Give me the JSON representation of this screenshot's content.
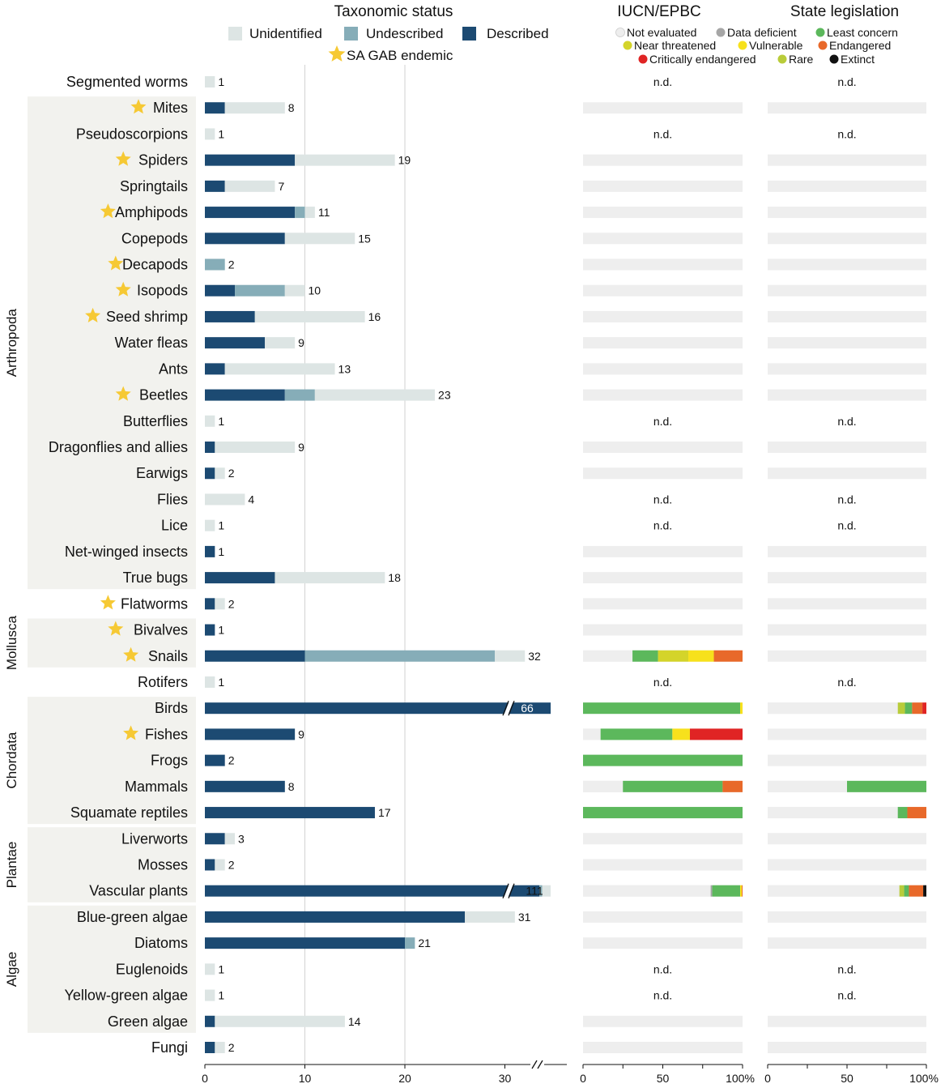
{
  "headers": {
    "taxonomic": "Taxonomic status",
    "iucn": "IUCN/EPBC",
    "state": "State legislation"
  },
  "legend_tax": [
    {
      "label": "Unidentified",
      "color": "#dde5e4"
    },
    {
      "label": "Undescribed",
      "color": "#86adb8"
    },
    {
      "label": "Described",
      "color": "#1c4a72"
    }
  ],
  "endemic_label": "SA GAB endemic",
  "legend_cons": [
    {
      "label": "Not evaluated",
      "color": "#eeeeee"
    },
    {
      "label": "Data deficient",
      "color": "#a6a6a6"
    },
    {
      "label": "Least concern",
      "color": "#5cb85c"
    },
    {
      "label": "Near threatened",
      "color": "#d4d42a"
    },
    {
      "label": "Vulnerable",
      "color": "#f7e11c"
    },
    {
      "label": "Endangered",
      "color": "#e8692a"
    },
    {
      "label": "Critically endangered",
      "color": "#e02424"
    },
    {
      "label": "Rare",
      "color": "#b9cc3a"
    },
    {
      "label": "Extinct",
      "color": "#111111"
    }
  ],
  "nd_label": "n.d.",
  "break_mark": "//",
  "axes": {
    "tax_ticks": [
      "0",
      "10",
      "20",
      "30"
    ],
    "pct_ticks": [
      "0",
      "50",
      "100%"
    ]
  },
  "groups": [
    {
      "label": "Arthropoda",
      "first": 1,
      "last": 19
    },
    {
      "label": "Mollusca",
      "first": 21,
      "last": 22
    },
    {
      "label": "Chordata",
      "first": 24,
      "last": 28
    },
    {
      "label": "Plantae",
      "first": 29,
      "last": 31
    },
    {
      "label": "Algae",
      "first": 32,
      "last": 36
    }
  ],
  "chart_data": {
    "type": "bar",
    "stacking": "stacked horizontal bars",
    "series": [
      "Described",
      "Undescribed",
      "Unidentified"
    ],
    "taxa": [
      {
        "name": "Segmented worms",
        "endemic": false,
        "described": 0,
        "undescribed": 0,
        "unidentified": 1,
        "total": "1",
        "nd": true
      },
      {
        "name": "Mites",
        "endemic": true,
        "described": 2,
        "undescribed": 0,
        "unidentified": 6,
        "total": "8"
      },
      {
        "name": "Pseudoscorpions",
        "endemic": false,
        "described": 0,
        "undescribed": 0,
        "unidentified": 1,
        "total": "1",
        "nd": true
      },
      {
        "name": "Spiders",
        "endemic": true,
        "described": 9,
        "undescribed": 0,
        "unidentified": 10,
        "total": "19"
      },
      {
        "name": "Springtails",
        "endemic": false,
        "described": 2,
        "undescribed": 0,
        "unidentified": 5,
        "total": "7"
      },
      {
        "name": "Amphipods",
        "endemic": true,
        "described": 9,
        "undescribed": 1,
        "unidentified": 1,
        "total": "11"
      },
      {
        "name": "Copepods",
        "endemic": false,
        "described": 8,
        "undescribed": 0,
        "unidentified": 7,
        "total": "15"
      },
      {
        "name": "Decapods",
        "endemic": true,
        "described": 0,
        "undescribed": 2,
        "unidentified": 0,
        "total": "2"
      },
      {
        "name": "Isopods",
        "endemic": true,
        "described": 3,
        "undescribed": 5,
        "unidentified": 2,
        "total": "10"
      },
      {
        "name": "Seed shrimp",
        "endemic": true,
        "described": 5,
        "undescribed": 0,
        "unidentified": 11,
        "total": "16"
      },
      {
        "name": "Water fleas",
        "endemic": false,
        "described": 6,
        "undescribed": 0,
        "unidentified": 3,
        "total": "9"
      },
      {
        "name": "Ants",
        "endemic": false,
        "described": 2,
        "undescribed": 0,
        "unidentified": 11,
        "total": "13"
      },
      {
        "name": "Beetles",
        "endemic": true,
        "described": 8,
        "undescribed": 3,
        "unidentified": 12,
        "total": "23"
      },
      {
        "name": "Butterflies",
        "endemic": false,
        "described": 0,
        "undescribed": 0,
        "unidentified": 1,
        "total": "1",
        "nd": true
      },
      {
        "name": "Dragonflies and allies",
        "endemic": false,
        "described": 1,
        "undescribed": 0,
        "unidentified": 8,
        "total": "9"
      },
      {
        "name": "Earwigs",
        "endemic": false,
        "described": 1,
        "undescribed": 0,
        "unidentified": 1,
        "total": "2"
      },
      {
        "name": "Flies",
        "endemic": false,
        "described": 0,
        "undescribed": 0,
        "unidentified": 4,
        "total": "4",
        "nd": true
      },
      {
        "name": "Lice",
        "endemic": false,
        "described": 0,
        "undescribed": 0,
        "unidentified": 1,
        "total": "1",
        "nd": true
      },
      {
        "name": "Net-winged insects",
        "endemic": false,
        "described": 1,
        "undescribed": 0,
        "unidentified": 0,
        "total": "1"
      },
      {
        "name": "True bugs",
        "endemic": false,
        "described": 7,
        "undescribed": 0,
        "unidentified": 11,
        "total": "18"
      },
      {
        "name": "Flatworms",
        "endemic": true,
        "described": 1,
        "undescribed": 0,
        "unidentified": 1,
        "total": "2"
      },
      {
        "name": "Bivalves",
        "endemic": true,
        "described": 1,
        "undescribed": 0,
        "unidentified": 0,
        "total": "1"
      },
      {
        "name": "Snails",
        "endemic": true,
        "described": 10,
        "undescribed": 19,
        "unidentified": 3,
        "total": "32",
        "iucn": [
          {
            "status": "Not evaluated",
            "pct": 31
          },
          {
            "status": "Least concern",
            "pct": 16
          },
          {
            "status": "Near threatened",
            "pct": 19
          },
          {
            "status": "Vulnerable",
            "pct": 16
          },
          {
            "status": "Endangered",
            "pct": 18
          }
        ]
      },
      {
        "name": "Rotifers",
        "endemic": false,
        "described": 0,
        "undescribed": 0,
        "unidentified": 1,
        "total": "1",
        "nd": true
      },
      {
        "name": "Birds",
        "endemic": false,
        "described": 66,
        "undescribed": 0,
        "unidentified": 0,
        "total": "66",
        "broken": true,
        "iucn": [
          {
            "status": "Least concern",
            "pct": 98.5
          },
          {
            "status": "Vulnerable",
            "pct": 1.5
          }
        ],
        "state": [
          {
            "status": "Not evaluated",
            "pct": 82
          },
          {
            "status": "Rare",
            "pct": 4.5
          },
          {
            "status": "Least concern",
            "pct": 4.5
          },
          {
            "status": "Endangered",
            "pct": 6.5
          },
          {
            "status": "Critically endangered",
            "pct": 2.5
          }
        ]
      },
      {
        "name": "Fishes",
        "endemic": true,
        "described": 9,
        "undescribed": 0,
        "unidentified": 0,
        "total": "9",
        "iucn": [
          {
            "status": "Not evaluated",
            "pct": 11
          },
          {
            "status": "Least concern",
            "pct": 45
          },
          {
            "status": "Vulnerable",
            "pct": 11
          },
          {
            "status": "Critically endangered",
            "pct": 33
          }
        ]
      },
      {
        "name": "Frogs",
        "endemic": false,
        "described": 2,
        "undescribed": 0,
        "unidentified": 0,
        "total": "2",
        "iucn": [
          {
            "status": "Least concern",
            "pct": 100
          }
        ]
      },
      {
        "name": "Mammals",
        "endemic": false,
        "described": 8,
        "undescribed": 0,
        "unidentified": 0,
        "total": "8",
        "iucn": [
          {
            "status": "Not evaluated",
            "pct": 25
          },
          {
            "status": "Least concern",
            "pct": 62.5
          },
          {
            "status": "Endangered",
            "pct": 12.5
          }
        ],
        "state": [
          {
            "status": "Not evaluated",
            "pct": 50
          },
          {
            "status": "Least concern",
            "pct": 50
          }
        ]
      },
      {
        "name": "Squamate reptiles",
        "endemic": false,
        "described": 17,
        "undescribed": 0,
        "unidentified": 0,
        "total": "17",
        "iucn": [
          {
            "status": "Least concern",
            "pct": 100
          }
        ],
        "state": [
          {
            "status": "Not evaluated",
            "pct": 82
          },
          {
            "status": "Least concern",
            "pct": 6
          },
          {
            "status": "Endangered",
            "pct": 12
          }
        ]
      },
      {
        "name": "Liverworts",
        "endemic": false,
        "described": 2,
        "undescribed": 0,
        "unidentified": 1,
        "total": "3"
      },
      {
        "name": "Mosses",
        "endemic": false,
        "described": 1,
        "undescribed": 0,
        "unidentified": 1,
        "total": "2"
      },
      {
        "name": "Vascular plants",
        "endemic": false,
        "described": 107,
        "undescribed": 1,
        "unidentified": 3,
        "total": "111",
        "broken": true,
        "iucn": [
          {
            "status": "Not evaluated",
            "pct": 80
          },
          {
            "status": "Data deficient",
            "pct": 1
          },
          {
            "status": "Least concern",
            "pct": 17.5
          },
          {
            "status": "Vulnerable",
            "pct": 1
          },
          {
            "status": "Endangered",
            "pct": 0.5
          }
        ],
        "state": [
          {
            "status": "Not evaluated",
            "pct": 83
          },
          {
            "status": "Rare",
            "pct": 3
          },
          {
            "status": "Least concern",
            "pct": 3
          },
          {
            "status": "Endangered",
            "pct": 9
          },
          {
            "status": "Extinct",
            "pct": 2
          }
        ]
      },
      {
        "name": "Blue-green algae",
        "endemic": false,
        "described": 26,
        "undescribed": 0,
        "unidentified": 5,
        "total": "31"
      },
      {
        "name": "Diatoms",
        "endemic": false,
        "described": 20,
        "undescribed": 1,
        "unidentified": 0,
        "total": "21"
      },
      {
        "name": "Euglenoids",
        "endemic": false,
        "described": 0,
        "undescribed": 0,
        "unidentified": 1,
        "total": "1",
        "nd": true
      },
      {
        "name": "Yellow-green algae",
        "endemic": false,
        "described": 0,
        "undescribed": 0,
        "unidentified": 1,
        "total": "1",
        "nd": true
      },
      {
        "name": "Green algae",
        "endemic": false,
        "described": 1,
        "undescribed": 0,
        "unidentified": 13,
        "total": "14"
      },
      {
        "name": "Fungi",
        "endemic": false,
        "described": 1,
        "undescribed": 0,
        "unidentified": 1,
        "total": "2"
      }
    ]
  }
}
